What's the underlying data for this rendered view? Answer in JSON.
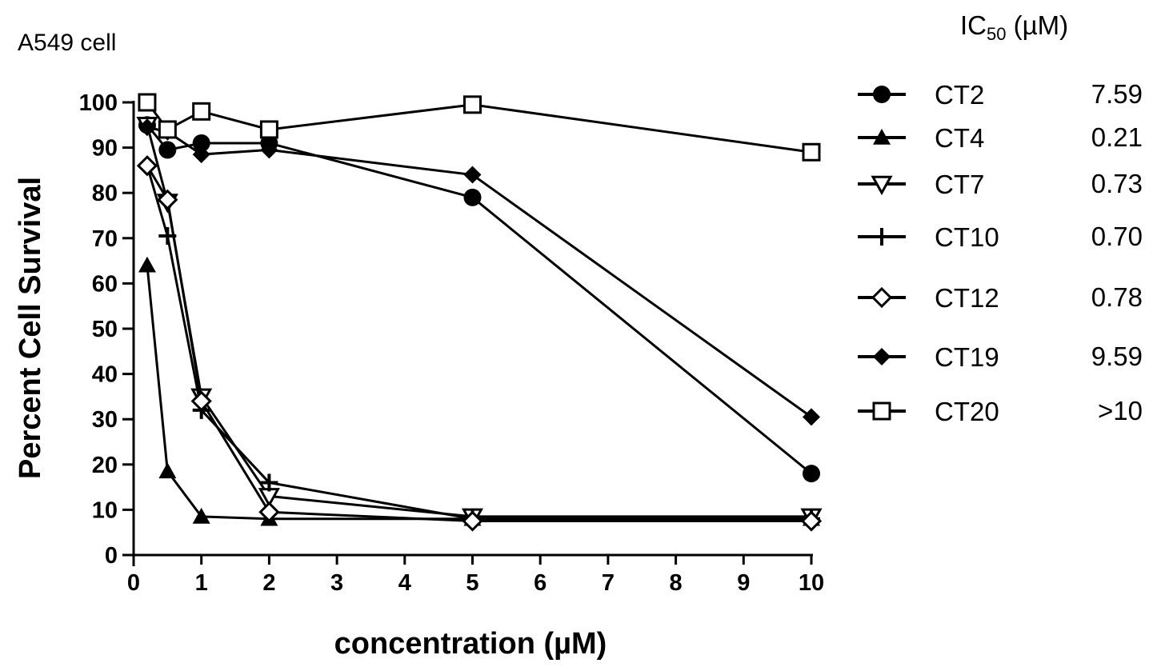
{
  "chart_data": {
    "type": "line",
    "title": "A549 cell",
    "xlabel": "concentration (µM)",
    "ylabel": "Percent Cell Survival",
    "xlim": [
      0,
      10
    ],
    "ylim": [
      0,
      100
    ],
    "x_ticks": [
      "0",
      "1",
      "2",
      "3",
      "4",
      "5",
      "6",
      "7",
      "8",
      "9",
      "10"
    ],
    "y_ticks": [
      "0",
      "10",
      "20",
      "30",
      "40",
      "50",
      "60",
      "70",
      "80",
      "90",
      "100"
    ],
    "ic50_header": {
      "main": "IC",
      "sub": "50",
      "unit": " (µM)"
    },
    "legend_position": "right",
    "grid": false,
    "series": [
      {
        "name": "CT2",
        "marker": "circle",
        "ic50": "7.59",
        "x": [
          0.2,
          0.5,
          1,
          2,
          5,
          10
        ],
        "y": [
          95,
          89.5,
          91,
          91,
          79,
          18
        ]
      },
      {
        "name": "CT4",
        "marker": "triangle-up",
        "ic50": "0.21",
        "x": [
          0.2,
          0.5,
          1,
          2,
          5,
          10
        ],
        "y": [
          64,
          18.5,
          8.5,
          8,
          8,
          8
        ]
      },
      {
        "name": "CT7",
        "marker": "triangle-down",
        "ic50": "0.73",
        "x": [
          0.2,
          0.5,
          1,
          2,
          5,
          10
        ],
        "y": [
          95,
          78,
          35,
          13,
          8.5,
          8.5
        ]
      },
      {
        "name": "CT10",
        "marker": "plus",
        "ic50": "0.70",
        "x": [
          0.2,
          0.5,
          1,
          2,
          5,
          10
        ],
        "y": [
          86,
          70.5,
          32,
          16,
          8,
          8
        ]
      },
      {
        "name": "CT12",
        "marker": "diamond-open",
        "ic50": "0.78",
        "x": [
          0.2,
          0.5,
          1,
          2,
          5,
          10
        ],
        "y": [
          86,
          78.5,
          34,
          9.5,
          7.5,
          7.5
        ]
      },
      {
        "name": "CT19",
        "marker": "diamond",
        "ic50": "9.59",
        "x": [
          0.2,
          0.5,
          1,
          2,
          5,
          10
        ],
        "y": [
          94.5,
          93.5,
          88.5,
          89.5,
          84,
          30.5
        ]
      },
      {
        "name": "CT20",
        "marker": "square-open",
        "ic50": ">10",
        "x": [
          0.2,
          0.5,
          1,
          2,
          5,
          10
        ],
        "y": [
          100,
          94,
          98,
          94,
          99.5,
          89
        ]
      }
    ]
  }
}
